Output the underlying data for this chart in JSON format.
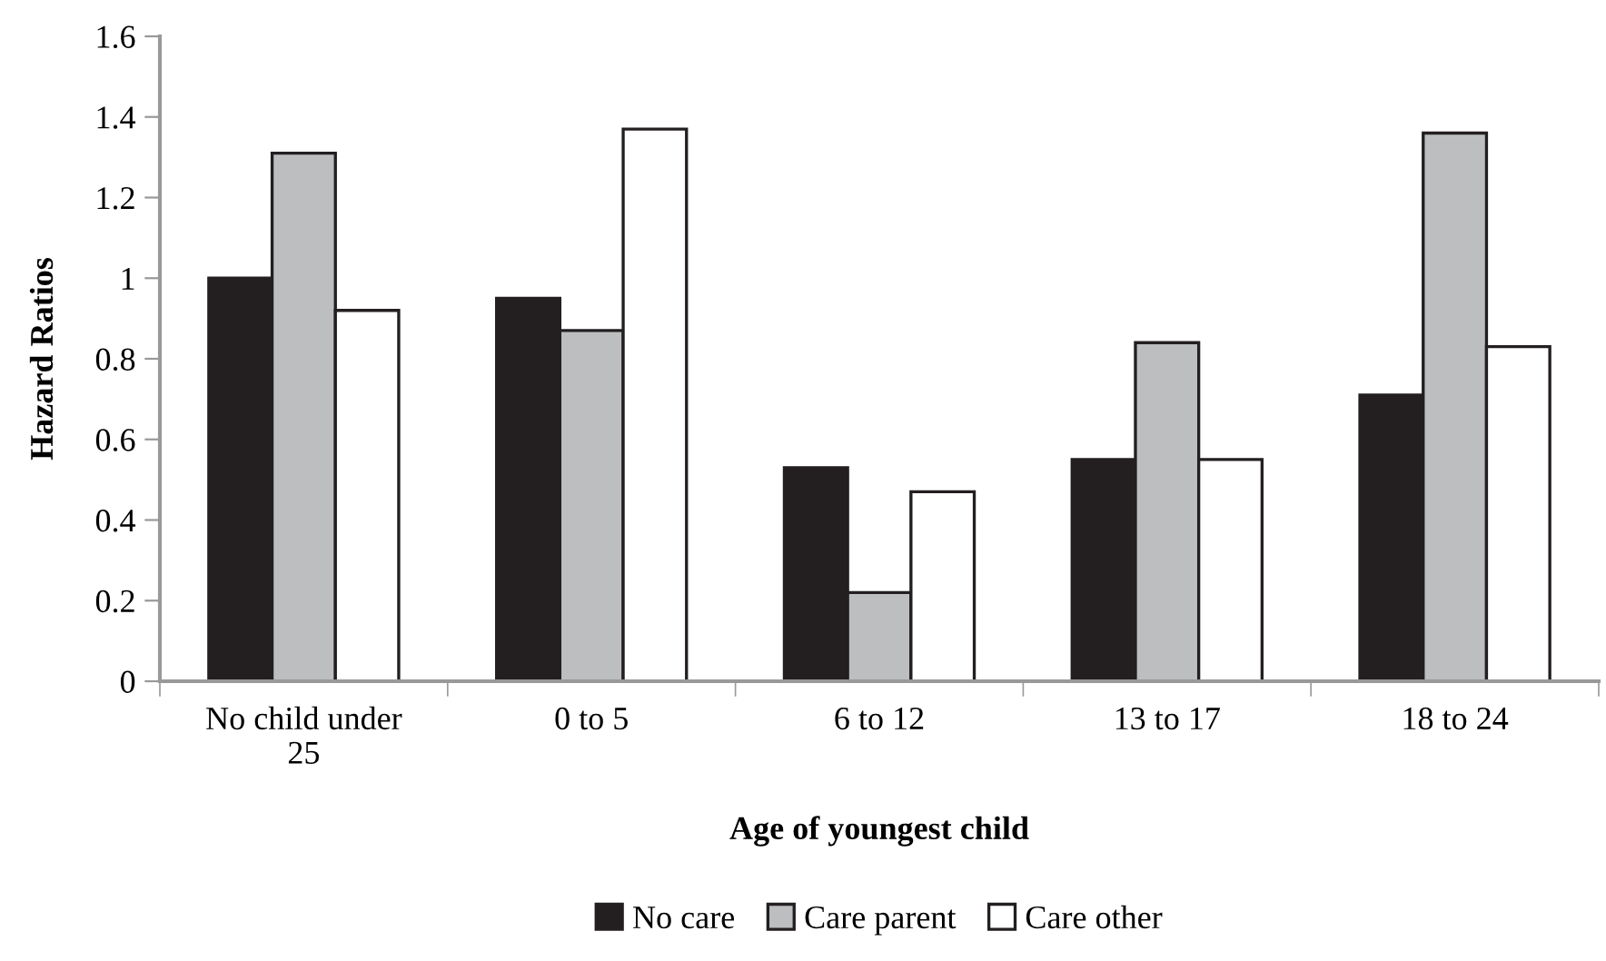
{
  "chart_data": {
    "type": "bar",
    "xlabel": "Age of youngest child",
    "ylabel": "Hazard Ratios",
    "categories": [
      "No child under\n25",
      "0 to 5",
      "6 to 12",
      "13 to 17",
      "18 to 24"
    ],
    "series": [
      {
        "name": "No care",
        "color": "#231f20",
        "values": [
          1.0,
          0.95,
          0.53,
          0.55,
          0.71
        ]
      },
      {
        "name": "Care parent",
        "color": "#bcbec0",
        "values": [
          1.31,
          0.87,
          0.22,
          0.84,
          1.36
        ]
      },
      {
        "name": "Care other",
        "color": "#ffffff",
        "values": [
          0.92,
          1.37,
          0.47,
          0.55,
          0.83
        ]
      }
    ],
    "ylim": [
      0,
      1.6
    ],
    "yticks": [
      0,
      0.2,
      0.4,
      0.6,
      0.8,
      1,
      1.2,
      1.4,
      1.6
    ],
    "grid": false,
    "legend": "bottom"
  }
}
